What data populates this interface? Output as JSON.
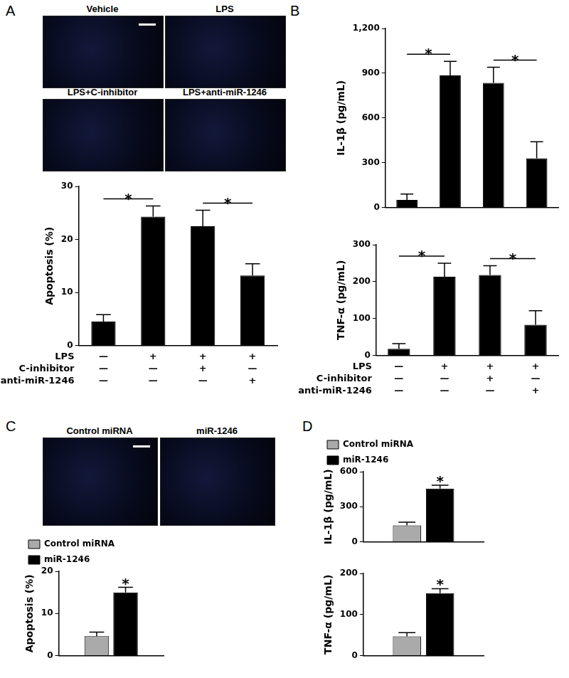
{
  "panel_labels": [
    "A",
    "B",
    "C",
    "D"
  ],
  "images": [
    {
      "panel": "A",
      "labels": [
        "Vehicle",
        "LPS",
        "LPS+C-inhibitor",
        "LPS+anti-miR-1246"
      ]
    },
    {
      "panel": "C",
      "labels": [
        "Control miRNA",
        "miR-1246"
      ]
    }
  ],
  "chart_data": [
    {
      "type": "bar",
      "y_label": "Apoptosis (%)",
      "categories": [
        null,
        null,
        null,
        null
      ],
      "values": [
        4.5,
        24.3,
        22.5,
        13.2
      ],
      "errors": [
        1.3,
        2.0,
        3.0,
        2.2
      ],
      "color": "#000000",
      "ylim": [
        0,
        30
      ],
      "yticks": [
        0,
        10,
        20,
        30
      ],
      "grid": false,
      "annotations": [
        {
          "from": 0,
          "to": 1,
          "label": "*"
        },
        {
          "from": 2,
          "to": 3,
          "label": "*"
        }
      ],
      "condition_table": {
        "rows": [
          {
            "name": "LPS",
            "values": [
              "—",
              "+",
              "+",
              "+"
            ]
          },
          {
            "name": "C-inhibitor",
            "values": [
              "—",
              "—",
              "+",
              "—"
            ]
          },
          {
            "name": "anti-miR-1246",
            "values": [
              "—",
              "—",
              "—",
              "+"
            ]
          }
        ]
      }
    },
    {
      "type": "bar",
      "y_label": "IL-1β (pg/mL)",
      "categories": [
        null,
        null,
        null,
        null
      ],
      "values": [
        50,
        885,
        835,
        330
      ],
      "errors": [
        40,
        95,
        105,
        110
      ],
      "color": "#000000",
      "ylim": [
        0,
        1200
      ],
      "yticks": [
        0,
        300,
        600,
        900,
        1200
      ],
      "grid": false,
      "annotations": [
        {
          "from": 0,
          "to": 1,
          "label": "*"
        },
        {
          "from": 2,
          "to": 3,
          "label": "*"
        }
      ]
    },
    {
      "type": "bar",
      "y_label": "TNF-α (pg/mL)",
      "categories": [
        null,
        null,
        null,
        null
      ],
      "values": [
        18,
        213,
        218,
        83
      ],
      "errors": [
        14,
        37,
        25,
        38
      ],
      "color": "#000000",
      "ylim": [
        0,
        300
      ],
      "yticks": [
        0,
        100,
        200,
        300
      ],
      "grid": false,
      "annotations": [
        {
          "from": 0,
          "to": 1,
          "label": "*"
        },
        {
          "from": 2,
          "to": 3,
          "label": "*"
        }
      ],
      "condition_table": {
        "rows": [
          {
            "name": "LPS",
            "values": [
              "—",
              "+",
              "+",
              "+"
            ]
          },
          {
            "name": "C-inhibitor",
            "values": [
              "—",
              "—",
              "+",
              "—"
            ]
          },
          {
            "name": "anti-miR-1246",
            "values": [
              "—",
              "—",
              "—",
              "+"
            ]
          }
        ]
      }
    },
    {
      "type": "bar",
      "y_label": "Apoptosis (%)",
      "categories": [
        null
      ],
      "series": [
        {
          "name": "Control miRNA",
          "color": "#aaaaaa",
          "values": [
            4.6
          ],
          "errors": [
            1.0
          ]
        },
        {
          "name": "miR-1246",
          "color": "#000000",
          "values": [
            15
          ],
          "errors": [
            1.2
          ]
        }
      ],
      "ylim": [
        0,
        20
      ],
      "yticks": [
        0,
        10,
        20
      ],
      "grid": false,
      "legend": "top-left",
      "annotations": [
        {
          "series": 1,
          "index": 0,
          "label": "*"
        }
      ]
    },
    {
      "type": "bar",
      "y_label": "IL-1β (pg/mL)",
      "categories": [
        null
      ],
      "series": [
        {
          "name": "Control miRNA",
          "color": "#aaaaaa",
          "values": [
            140
          ],
          "errors": [
            28
          ]
        },
        {
          "name": "miR-1246",
          "color": "#000000",
          "values": [
            455
          ],
          "errors": [
            30
          ]
        }
      ],
      "ylim": [
        0,
        600
      ],
      "yticks": [
        0,
        300,
        600
      ],
      "grid": false,
      "legend": "top-left",
      "annotations": [
        {
          "series": 1,
          "index": 0,
          "label": "*"
        }
      ]
    },
    {
      "type": "bar",
      "y_label": "TNF-α (pg/mL)",
      "categories": [
        null
      ],
      "series": [
        {
          "name": "Control miRNA",
          "color": "#aaaaaa",
          "values": [
            47
          ],
          "errors": [
            9
          ]
        },
        {
          "name": "miR-1246",
          "color": "#000000",
          "values": [
            152
          ],
          "errors": [
            11
          ]
        }
      ],
      "ylim": [
        0,
        200
      ],
      "yticks": [
        0,
        100,
        200
      ],
      "grid": false,
      "annotations": [
        {
          "series": 1,
          "index": 0,
          "label": "*"
        }
      ]
    }
  ]
}
